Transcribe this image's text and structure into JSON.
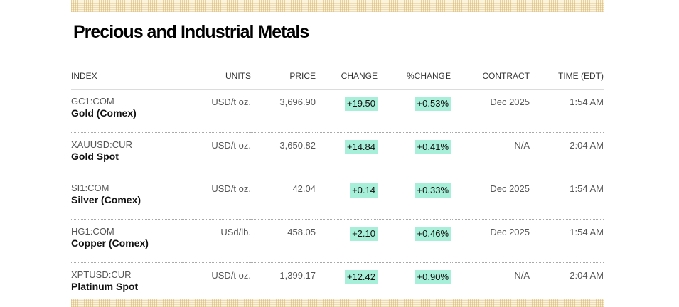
{
  "title": "Precious and Industrial Metals",
  "columns": {
    "index": "INDEX",
    "units": "UNITS",
    "price": "PRICE",
    "change": "CHANGE",
    "pct_change": "%CHANGE",
    "contract": "CONTRACT",
    "time": "TIME (EDT)"
  },
  "colors": {
    "positive_highlight": "#a7efd8",
    "accent_hatch": "#d6b26e"
  },
  "rows": [
    {
      "symbol": "GC1:COM",
      "name": "Gold (Comex)",
      "units": "USD/t oz.",
      "price": "3,696.90",
      "change": "+19.50",
      "pct_change": "+0.53%",
      "contract": "Dec 2025",
      "time": "1:54 AM"
    },
    {
      "symbol": "XAUUSD:CUR",
      "name": "Gold Spot",
      "units": "USD/t oz.",
      "price": "3,650.82",
      "change": "+14.84",
      "pct_change": "+0.41%",
      "contract": "N/A",
      "time": "2:04 AM"
    },
    {
      "symbol": "SI1:COM",
      "name": "Silver (Comex)",
      "units": "USD/t oz.",
      "price": "42.04",
      "change": "+0.14",
      "pct_change": "+0.33%",
      "contract": "Dec 2025",
      "time": "1:54 AM"
    },
    {
      "symbol": "HG1:COM",
      "name": "Copper (Comex)",
      "units": "USd/lb.",
      "price": "458.05",
      "change": "+2.10",
      "pct_change": "+0.46%",
      "contract": "Dec 2025",
      "time": "1:54 AM"
    },
    {
      "symbol": "XPTUSD:CUR",
      "name": "Platinum Spot",
      "units": "USD/t oz.",
      "price": "1,399.17",
      "change": "+12.42",
      "pct_change": "+0.90%",
      "contract": "N/A",
      "time": "2:04 AM"
    }
  ]
}
